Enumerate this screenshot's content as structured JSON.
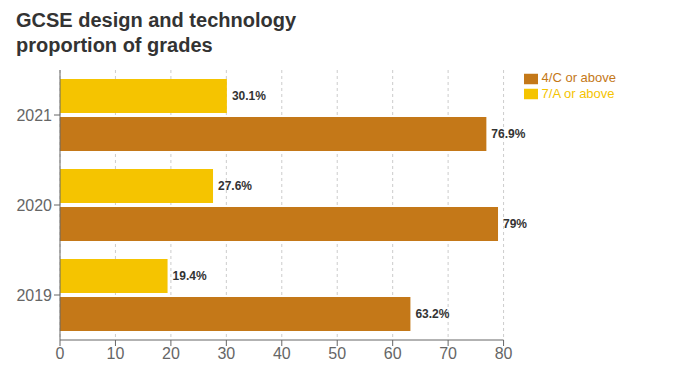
{
  "chart_data": {
    "type": "bar",
    "orientation": "horizontal",
    "title": "GCSE design and technology\nproportion of grades",
    "categories": [
      "2021",
      "2020",
      "2019"
    ],
    "series": [
      {
        "name": "7/A or above",
        "color": "#F5C400",
        "values": [
          30.1,
          27.6,
          19.4
        ],
        "value_labels": [
          "30.1%",
          "27.6%",
          "19.4%"
        ]
      },
      {
        "name": "4/C or above",
        "color": "#C47818",
        "values": [
          76.9,
          79.0,
          63.2
        ],
        "value_labels": [
          "76.9%",
          "79%",
          "63.2%"
        ]
      }
    ],
    "xlim": [
      0,
      80
    ],
    "xticks": [
      0,
      10,
      20,
      30,
      40,
      50,
      60,
      70,
      80
    ],
    "grid": true,
    "legend": "upper right",
    "data_labels": true
  }
}
